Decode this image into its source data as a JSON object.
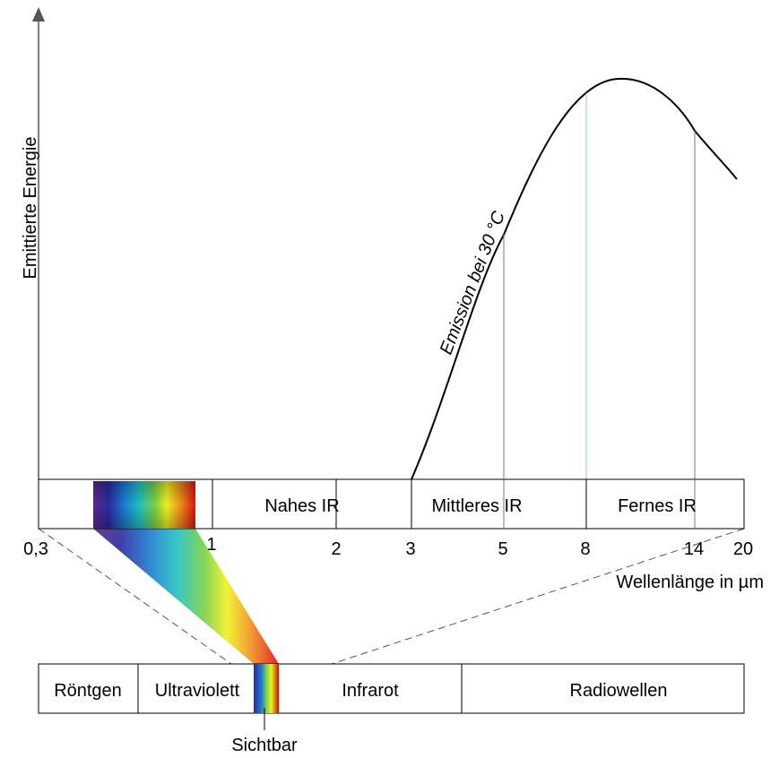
{
  "y_axis_label": "Emittierte Energie",
  "curve_label": "Emission bei 30 °C",
  "ir_bands": [
    "Nahes IR",
    "Mittleres IR",
    "Fernes IR"
  ],
  "wavelength_ticks": [
    "0,3",
    "1",
    "2",
    "3",
    "5",
    "8",
    "14",
    "20"
  ],
  "x_axis_label": "Wellenlänge in µm",
  "spectrum_bands": [
    "Röntgen",
    "Ultraviolett",
    "Infrarot",
    "Radiowellen"
  ],
  "visible_label": "Sichtbar"
}
